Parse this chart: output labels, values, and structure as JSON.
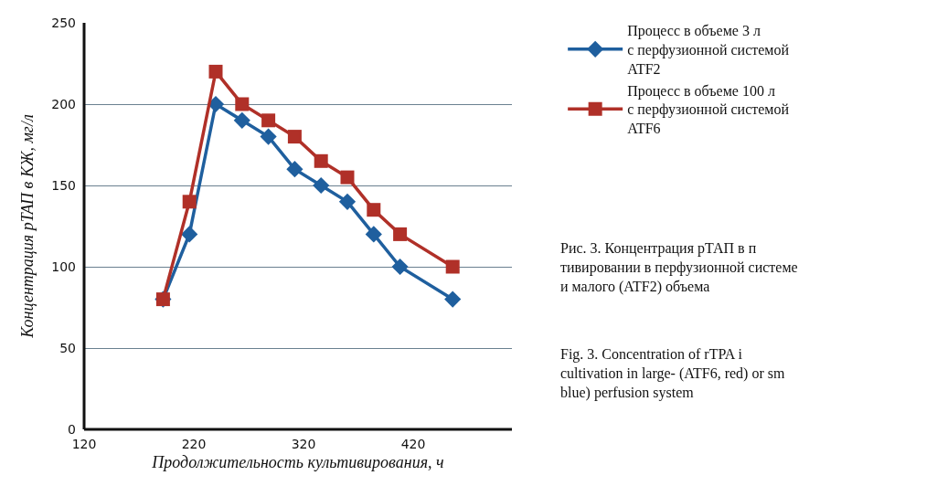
{
  "chart_data": {
    "type": "line",
    "xlabel": "Продолжительность культивирования, ч",
    "ylabel": "Концентрация рТАП в КЖ, мг/л",
    "x": [
      192,
      216,
      240,
      264,
      288,
      312,
      336,
      360,
      384,
      408,
      456
    ],
    "series": [
      {
        "name": "Процесс в объеме 3 л\nс перфузионной системой\nATF2",
        "color": "#1f5f9e",
        "marker": "diamond",
        "values": [
          80,
          120,
          200,
          190,
          180,
          160,
          150,
          140,
          120,
          100,
          80
        ]
      },
      {
        "name": "Процесс в объеме 100 л\nс перфузионной системой\nATF6",
        "color": "#b03028",
        "marker": "square",
        "values": [
          80,
          140,
          220,
          200,
          190,
          180,
          165,
          155,
          135,
          120,
          100
        ]
      }
    ],
    "xlim": [
      120,
      510
    ],
    "xticks": [
      120,
      220,
      320,
      420
    ],
    "ylim": [
      0,
      250
    ],
    "yticks": [
      0,
      50,
      100,
      150,
      200,
      250
    ],
    "grid": "y",
    "legend": "right",
    "annotations": [
      "Рис. 3. Концентрация рТАП в п\nтивировании в перфузионной системе\nи малого (ATF2) объема",
      "Fig. 3. Concentration of rTPA i\ncultivation in large- (ATF6, red) or sm\nblue) perfusion system"
    ]
  }
}
